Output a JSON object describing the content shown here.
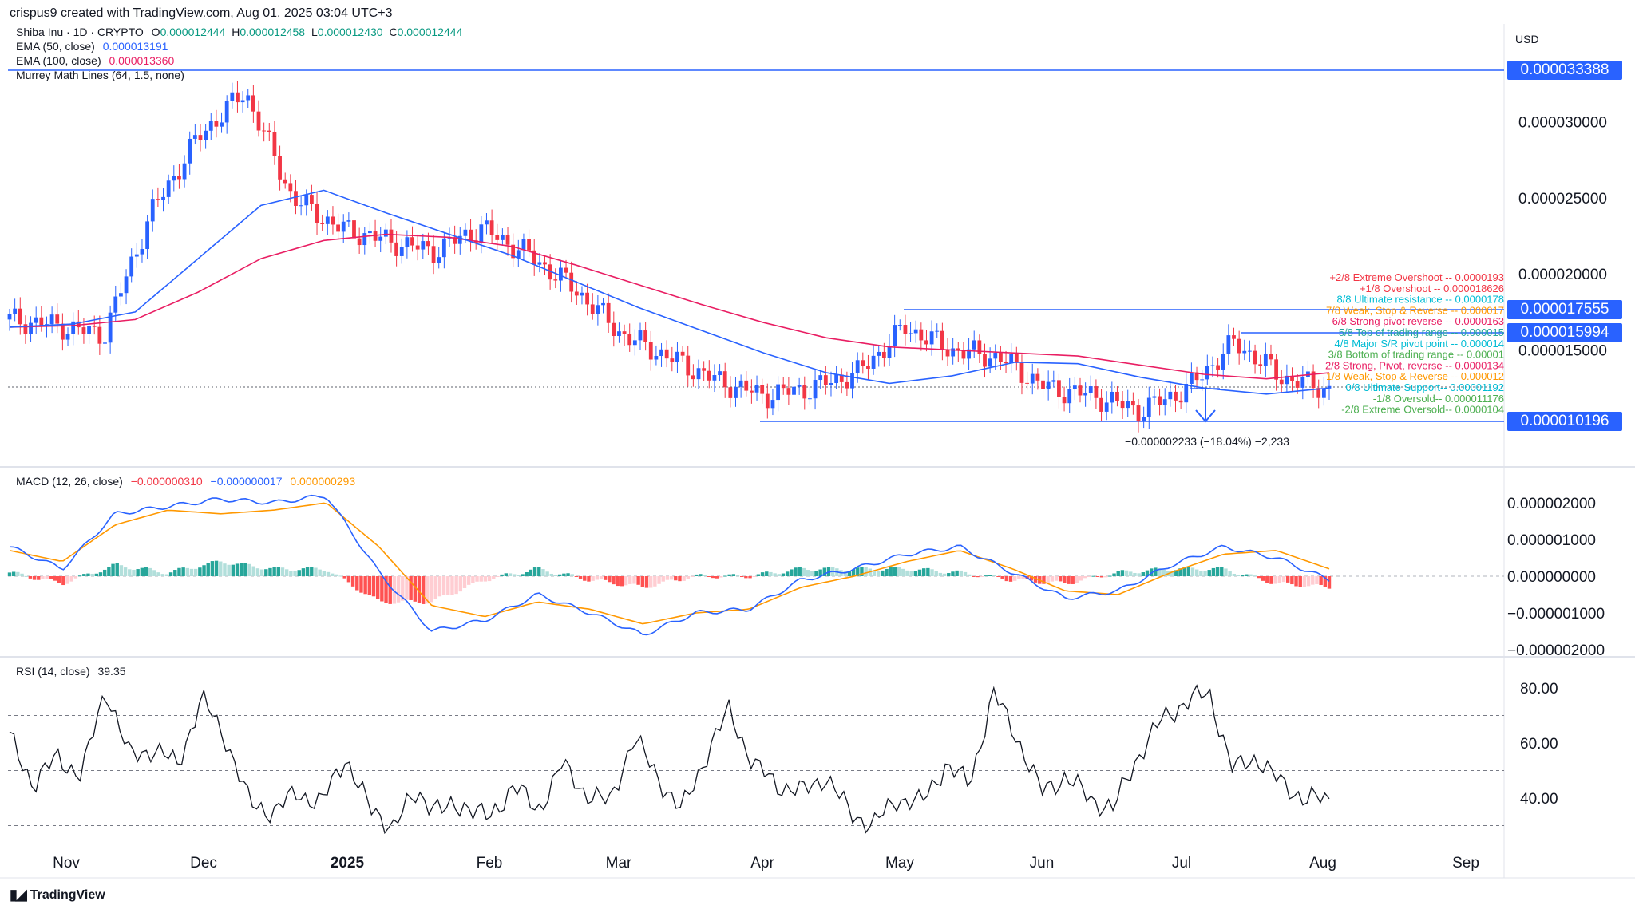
{
  "header": {
    "credit": "crispus9 created with TradingView.com, Aug 01, 2025 03:04 UTC+3",
    "symbol_line": "Shiba Inu · 1D · CRYPTO",
    "ohlc": {
      "o_label": "O",
      "o": "0.000012444",
      "h_label": "H",
      "h": "0.000012458",
      "l_label": "L",
      "l": "0.000012430",
      "c_label": "C",
      "c": "0.000012444"
    },
    "ema50": {
      "label": "EMA (50, close)",
      "value": "0.000013191",
      "color": "#2962ff"
    },
    "ema100": {
      "label": "EMA (100, close)",
      "value": "0.000013360",
      "color": "#e91e63"
    },
    "murrey": {
      "label": "Murrey Math Lines (64, 1.5, none)"
    },
    "currency": "USD"
  },
  "colors": {
    "up": "#26a69a",
    "down": "#f23645",
    "upCandle": "#2962ff",
    "downCandle": "#f23645",
    "ema50": "#2962ff",
    "ema100": "#e91e63",
    "accent": "#2962ff"
  },
  "price_boxes": [
    "0.000033388",
    "0.000017555",
    "0.000015994",
    "0.000010196"
  ],
  "murrey_levels": [
    {
      "label": "+2/8 Extreme Overshoot --  0.0000193",
      "color": "#f23645"
    },
    {
      "label": "+1/8 Overshoot --  0.000018626",
      "color": "#f23645"
    },
    {
      "label": "8/8 Ultimate resistance --  0.0000178",
      "color": "#00bcd4"
    },
    {
      "label": "7/8 Weak, Stop & Reverse --  0.000017",
      "color": "#ff9800"
    },
    {
      "label": "6/8 Strong pivot reverse --  0.0000163",
      "color": "#e91e63"
    },
    {
      "label": "5/8 Top of trading range --  0.000015",
      "color": "#26a69a"
    },
    {
      "label": "4/8 Major S/R pivot point --  0.000014",
      "color": "#00bcd4"
    },
    {
      "label": "3/8 Bottom of trading range --  0.00001",
      "color": "#4caf50"
    },
    {
      "label": "2/8 Strong, Pivot, reverse --  0.0000134",
      "color": "#e91e63"
    },
    {
      "label": "1/8 Weak, Stop & Reverse --  0.000012",
      "color": "#ff9800"
    },
    {
      "label": "0/8 Ultimate Support--  0.00001192",
      "color": "#00bcd4"
    },
    {
      "label": "-1/8 Oversold--  0.000011176",
      "color": "#4caf50"
    },
    {
      "label": "-2/8 Extreme Oversold--  0.0000104",
      "color": "#4caf50"
    }
  ],
  "measure_label": "−0.000002233 (−18.04%) −2,233",
  "macd": {
    "label": "MACD (12, 26, close)",
    "v1": "−0.000000310",
    "v1_color": "#f23645",
    "v2": "−0.000000017",
    "v2_color": "#2962ff",
    "v3": "0.000000293",
    "v3_color": "#ff9800"
  },
  "rsi": {
    "label": "RSI (14, close)",
    "value": "39.35"
  },
  "brand": "TradingView",
  "chart_data": {
    "type": "candlestick",
    "title": "Shiba Inu · 1D · CRYPTO",
    "y_ticks": [
      "0.000030000",
      "0.000025000",
      "0.000020000",
      "0.000015000"
    ],
    "x_ticks": [
      "Nov",
      "Dec",
      "2025",
      "Feb",
      "Mar",
      "Apr",
      "May",
      "Jun",
      "Jul",
      "Aug",
      "Sep"
    ],
    "ylim": [
      8.5e-06,
      3.4e-05
    ],
    "series": [
      {
        "name": "EMA (50, close)",
        "values": [
          1.65e-05,
          1.67e-05,
          1.75e-05,
          2.1e-05,
          2.45e-05,
          2.55e-05,
          2.4e-05,
          2.26e-05,
          2.12e-05,
          1.95e-05,
          1.78e-05,
          1.63e-05,
          1.48e-05,
          1.35e-05,
          1.28e-05,
          1.33e-05,
          1.42e-05,
          1.41e-05,
          1.32e-05,
          1.25e-05,
          1.21e-05,
          1.25e-05
        ]
      },
      {
        "name": "EMA (100, close)",
        "values": [
          1.65e-05,
          1.66e-05,
          1.7e-05,
          1.88e-05,
          2.1e-05,
          2.22e-05,
          2.26e-05,
          2.24e-05,
          2.18e-05,
          2.06e-05,
          1.93e-05,
          1.8e-05,
          1.68e-05,
          1.58e-05,
          1.52e-05,
          1.5e-05,
          1.48e-05,
          1.46e-05,
          1.4e-05,
          1.34e-05,
          1.31e-05,
          1.35e-05
        ]
      }
    ],
    "close": [
      1.7e-05,
      1.66e-05,
      1.6e-05,
      2.4e-05,
      2.9e-05,
      3.2e-05,
      2.5e-05,
      2.3e-05,
      2.22e-05,
      2.15e-05,
      2.3e-05,
      2.13e-05,
      1.9e-05,
      1.6e-05,
      1.45e-05,
      1.3e-05,
      1.2e-05,
      1.25e-05,
      1.35e-05,
      1.65e-05,
      1.5e-05,
      1.45e-05,
      1.25e-05,
      1.2e-05,
      1.1e-05,
      1.25e-05,
      1.55e-05,
      1.32e-05,
      1.24e-05
    ],
    "macd_ticks": [
      "0.000002000",
      "0.000001000",
      "0.000000000",
      "−0.000001000",
      "−0.000002000"
    ],
    "macd_ylim": [
      -2.2e-06,
      2.5e-06
    ],
    "macd_line": [
      8e-07,
      2e-07,
      1.7e-06,
      1.9e-06,
      2.1e-06,
      2e-06,
      2.2e-06,
      1e-07,
      -1.5e-06,
      -1.2e-06,
      -5e-07,
      -1e-06,
      -1.6e-06,
      -1e-06,
      -9e-07,
      -1e-07,
      2e-07,
      6e-07,
      8e-07,
      1e-07,
      -6e-07,
      -4e-07,
      3e-07,
      8e-07,
      5e-07,
      -1e-07
    ],
    "signal_line": [
      7e-07,
      4e-07,
      1.4e-06,
      1.8e-06,
      1.7e-06,
      1.8e-06,
      2e-06,
      8e-07,
      -8e-07,
      -1.1e-06,
      -7e-07,
      -9e-07,
      -1.3e-06,
      -1e-06,
      -9e-07,
      -3e-07,
      0.0,
      4e-07,
      7e-07,
      2e-07,
      -4e-07,
      -5e-07,
      1e-07,
      6e-07,
      7e-07,
      2e-07
    ],
    "rsi_ticks": [
      "80.00",
      "60.00",
      "40.00"
    ],
    "rsi_ylim": [
      25,
      90
    ],
    "rsi_levels": [
      70,
      50,
      30
    ],
    "rsi_values": [
      62,
      45,
      55,
      48,
      80,
      55,
      58,
      52,
      76,
      62,
      38,
      35,
      42,
      38,
      55,
      36,
      30,
      42,
      35,
      38,
      32,
      45,
      35,
      52,
      42,
      38,
      62,
      48,
      35,
      55,
      72,
      52,
      45,
      42,
      48,
      35,
      30,
      40,
      38,
      52,
      45,
      78,
      62,
      42,
      48,
      40,
      36,
      55,
      68,
      75,
      78,
      50,
      55,
      45,
      40,
      39
    ]
  }
}
